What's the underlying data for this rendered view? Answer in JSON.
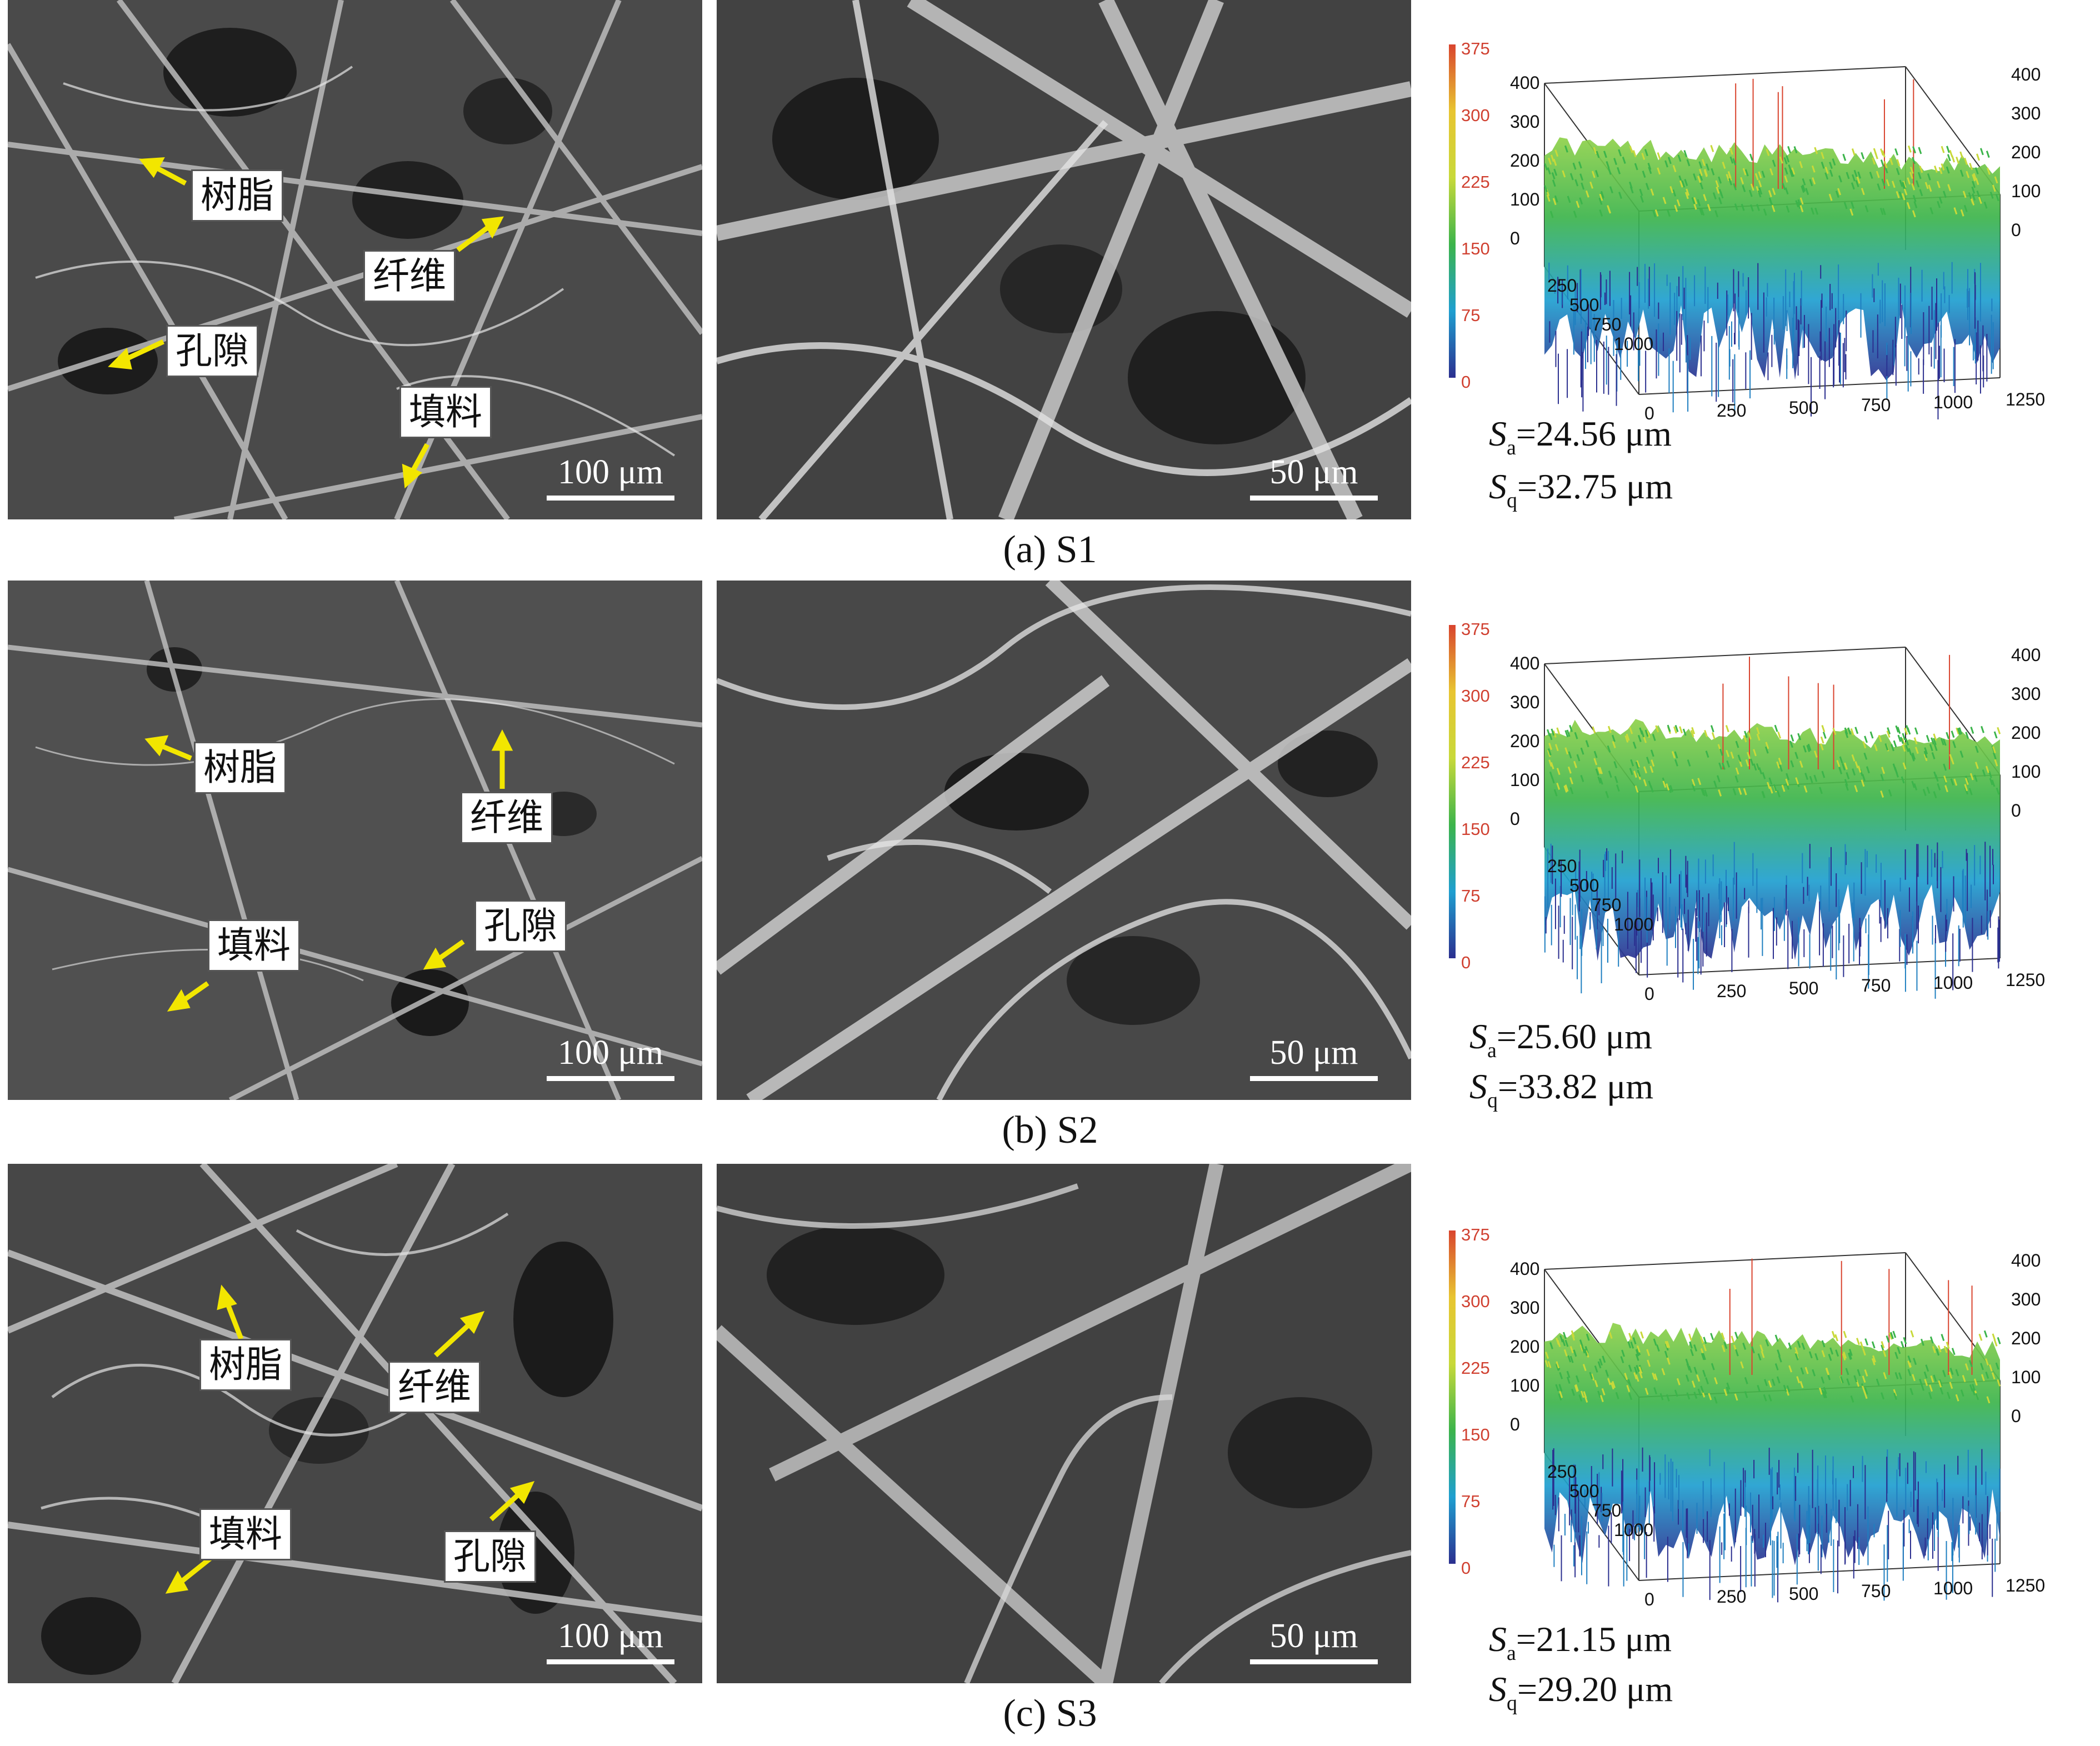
{
  "panels": [
    {
      "caption": "(a) S1",
      "sem_left": {
        "scale": "100 μm",
        "labels": {
          "resin": "树脂",
          "fiber": "纤维",
          "pore": "孔隙",
          "filler": "填料"
        }
      },
      "sem_right": {
        "scale": "50 μm"
      },
      "surface": {
        "colorbar_ticks": [
          "375",
          "300",
          "225",
          "150",
          "75",
          "0"
        ],
        "z_ticks_left": [
          "400",
          "300",
          "200",
          "100",
          "0"
        ],
        "z_ticks_right": [
          "400",
          "300",
          "200",
          "100",
          "0"
        ],
        "x_ticks": [
          "0",
          "250",
          "500",
          "750",
          "1000",
          "1250"
        ],
        "y_ticks": [
          "250",
          "500",
          "750",
          "1000"
        ]
      },
      "metrics": {
        "sa_symbol": "S",
        "sa_sub": "a",
        "sa_value": "=24.56 μm",
        "sq_symbol": "S",
        "sq_sub": "q",
        "sq_value": "=32.75 μm"
      }
    },
    {
      "caption": "(b) S2",
      "sem_left": {
        "scale": "100 μm",
        "labels": {
          "resin": "树脂",
          "fiber": "纤维",
          "pore": "孔隙",
          "filler": "填料"
        }
      },
      "sem_right": {
        "scale": "50 μm"
      },
      "surface": {
        "colorbar_ticks": [
          "375",
          "300",
          "225",
          "150",
          "75",
          "0"
        ],
        "z_ticks_left": [
          "400",
          "300",
          "200",
          "100",
          "0"
        ],
        "z_ticks_right": [
          "400",
          "300",
          "200",
          "100",
          "0"
        ],
        "x_ticks": [
          "0",
          "250",
          "500",
          "750",
          "1000",
          "1250"
        ],
        "y_ticks": [
          "250",
          "500",
          "750",
          "1000"
        ]
      },
      "metrics": {
        "sa_symbol": "S",
        "sa_sub": "a",
        "sa_value": "=25.60 μm",
        "sq_symbol": "S",
        "sq_sub": "q",
        "sq_value": "=33.82 μm"
      }
    },
    {
      "caption": "(c) S3",
      "sem_left": {
        "scale": "100 μm",
        "labels": {
          "resin": "树脂",
          "fiber": "纤维",
          "pore": "孔隙",
          "filler": "填料"
        }
      },
      "sem_right": {
        "scale": "50 μm"
      },
      "surface": {
        "colorbar_ticks": [
          "375",
          "300",
          "225",
          "150",
          "75",
          "0"
        ],
        "z_ticks_left": [
          "400",
          "300",
          "200",
          "100",
          "0"
        ],
        "z_ticks_right": [
          "400",
          "300",
          "200",
          "100",
          "0"
        ],
        "x_ticks": [
          "0",
          "250",
          "500",
          "750",
          "1000",
          "1250"
        ],
        "y_ticks": [
          "250",
          "500",
          "750",
          "1000"
        ]
      },
      "metrics": {
        "sa_symbol": "S",
        "sa_sub": "a",
        "sa_value": "=21.15 μm",
        "sq_symbol": "S",
        "sq_sub": "q",
        "sq_value": "=29.20 μm"
      }
    }
  ],
  "colors": {
    "arrow": "#f2e600",
    "colormap": [
      "#2b2f8f",
      "#1f9fd0",
      "#3cb44b",
      "#c8d93a",
      "#e8c531",
      "#d9442e"
    ]
  }
}
